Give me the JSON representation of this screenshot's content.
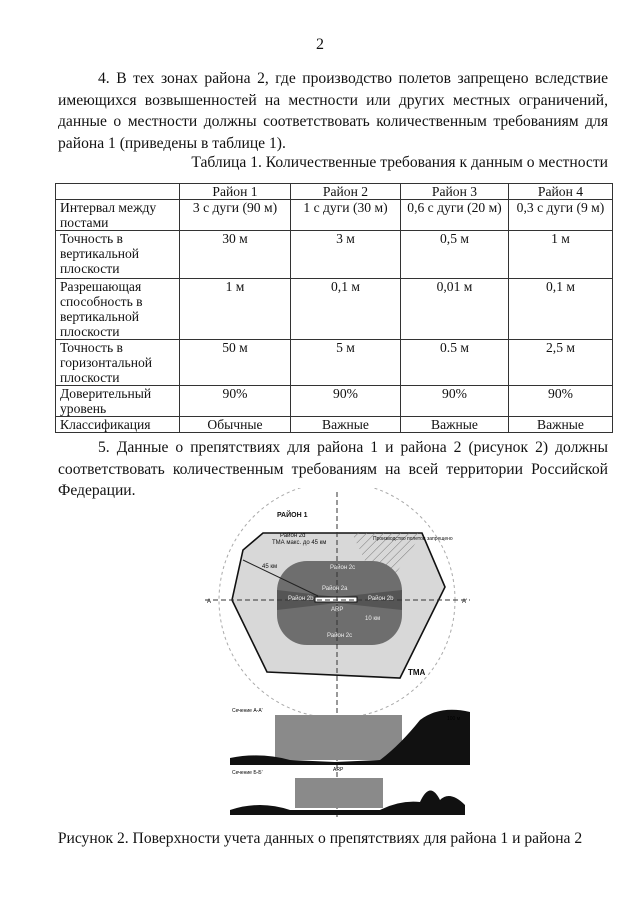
{
  "page_number": "2",
  "paragraph_4": "4. В тех зонах района 2, где производство полетов запрещено вследствие имеющихся возвышенностей на местности или других местных ограничений, данные о местности должны соответствовать количественным требованиям для района 1 (приведены в таблице 1).",
  "table": {
    "title": "Таблица 1. Количественные требования к данным о местности",
    "headers": [
      "",
      "Район 1",
      "Район 2",
      "Район 3",
      "Район 4"
    ],
    "rows": [
      [
        "Интервал между постами",
        "3 с дуги (90 м)",
        "1 с дуги (30 м)",
        "0,6 с дуги (20 м)",
        "0,3 с дуги (9 м)"
      ],
      [
        "Точность в вертикальной плоскости",
        "30 м",
        "3 м",
        "0,5 м",
        "1 м"
      ],
      [
        "Разрешающая способность в вертикальной плоскости",
        "1 м",
        "0,1 м",
        "0,01 м",
        "0,1 м"
      ],
      [
        "Точность в горизонтальной плоскости",
        "50 м",
        "5 м",
        "0.5 м",
        "2,5 м"
      ],
      [
        "Доверительный уровень",
        "90%",
        "90%",
        "90%",
        "90%"
      ],
      [
        "Классификация",
        "Обычные",
        "Важные",
        "Важные",
        "Важные"
      ]
    ]
  },
  "paragraph_5": "5. Данные о препятствиях для района 1 и района 2 (рисунок 2) должны соответствовать количественным требованиям на всей территории Российской Федерации.",
  "figure": {
    "labels": {
      "area1": "РАЙОН 1",
      "area2d": "Район 2d",
      "area2d_sub": "ТМА макс. до 45 км",
      "prohibited": "Производство полетов запрещено",
      "dist45": "45 км",
      "area2c_top": "Район 2с",
      "area2a": "Район 2а",
      "area2b_left": "Район 2b",
      "area2b_right": "Район 2b",
      "area2c_bottom": "Район 2с",
      "arp": "ARP",
      "dist10": "10 км",
      "tma": "TMA",
      "section_a": "Сечение А-А'",
      "section_b": "Сечение Б-Б'",
      "h100": "100 м"
    },
    "caption": "Рисунок 2. Поверхности учета данных о препятствиях для района 1 и района 2"
  }
}
